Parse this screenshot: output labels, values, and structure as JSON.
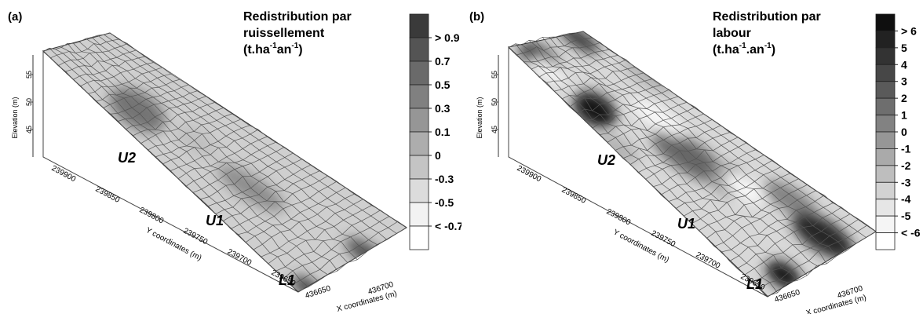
{
  "figure": {
    "panels": [
      {
        "label": "(a)",
        "title_lines": [
          "Redistribution par",
          "ruissellement"
        ],
        "unit": {
          "base": "(t.ha",
          "sup1": "-1",
          "mid": "an",
          "sup2": "-1",
          "end": ")"
        },
        "legend": {
          "labels": [
            "> 0.9",
            "0.7",
            "0.5",
            "0.3",
            "0.1",
            "0",
            "-0.3",
            "-0.5",
            "< -0.7"
          ],
          "colors": [
            "#3a3a3a",
            "#545454",
            "#6a6a6a",
            "#808080",
            "#969696",
            "#adadad",
            "#c4c4c4",
            "#dcdcdc",
            "#f2f2f2",
            "#ffffff"
          ]
        },
        "zones": [
          "U2",
          "U1",
          "L1"
        ],
        "axes": {
          "z_label": "Elevation (m)",
          "z_ticks": [
            "55",
            "50",
            "45"
          ],
          "y_label": "Y coordinates (m)",
          "y_ticks": [
            "239900",
            "239850",
            "239800",
            "239750",
            "239700",
            "239650"
          ],
          "x_label": "X coordinates (m)",
          "x_ticks": [
            "436650",
            "436700"
          ]
        }
      },
      {
        "label": "(b)",
        "title_lines": [
          "Redistribution par",
          "labour"
        ],
        "unit": {
          "base": "(t.ha",
          "sup1": "-1",
          "mid": ".an",
          "sup2": "-1",
          "end": ")"
        },
        "legend": {
          "labels": [
            "> 6",
            "5",
            "4",
            "3",
            "2",
            "1",
            "0",
            "-1",
            "-2",
            "-3",
            "-4",
            "-5",
            "< -6"
          ],
          "colors": [
            "#0f0f0f",
            "#222",
            "#333",
            "#474747",
            "#5a5a5a",
            "#6e6e6e",
            "#828282",
            "#969696",
            "#aaaaaa",
            "#bebebe",
            "#d2d2d2",
            "#e6e6e6",
            "#f5f5f5",
            "#ffffff"
          ]
        },
        "zones": [
          "U2",
          "U1",
          "L1"
        ],
        "axes": {
          "z_label": "Elevation (m)",
          "z_ticks": [
            "55",
            "50",
            "45"
          ],
          "y_label": "Y coordinates (m)",
          "y_ticks": [
            "239900",
            "239850",
            "239800",
            "239750",
            "239700",
            "239650"
          ],
          "x_label": "X coordinates (m)",
          "x_ticks": [
            "436650",
            "436700"
          ]
        }
      }
    ]
  }
}
